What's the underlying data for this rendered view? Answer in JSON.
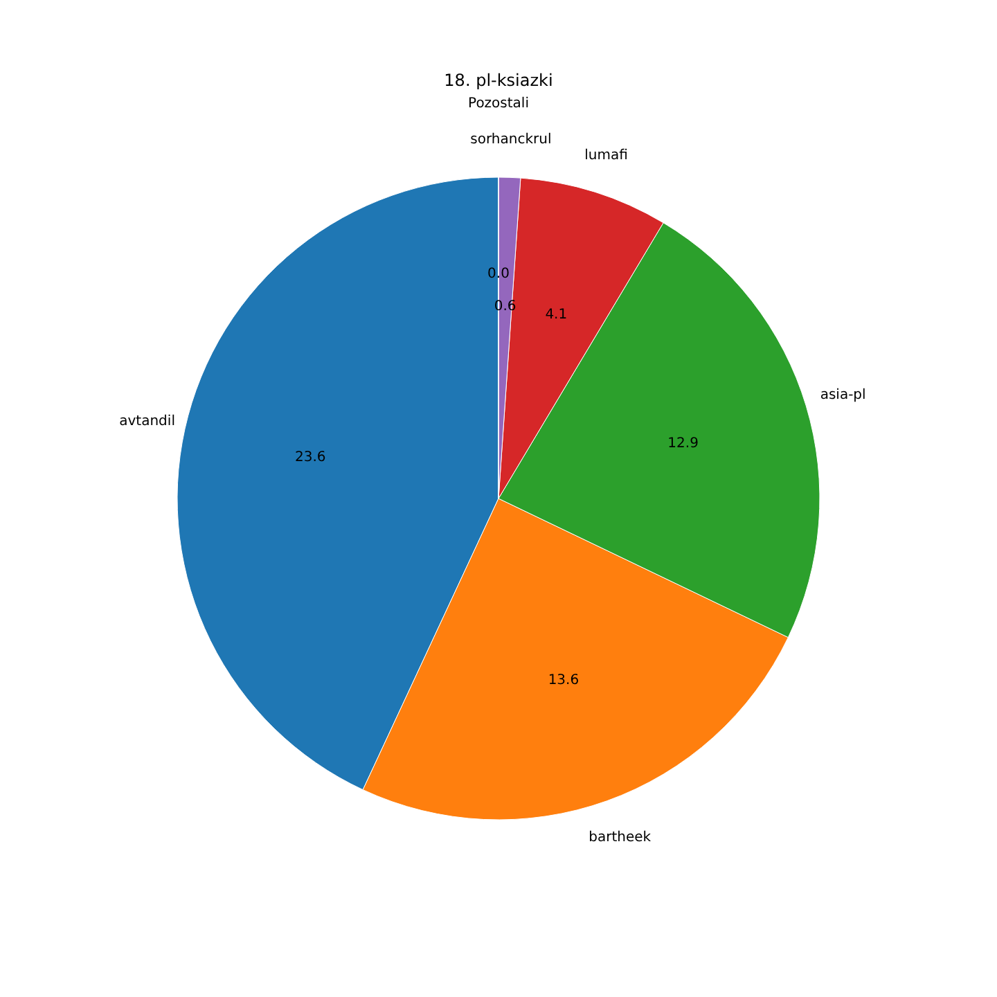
{
  "chart_data": {
    "type": "pie",
    "title": "18. pl-ksiazki",
    "categories": [
      "avtandil",
      "bartheek",
      "asia-pl",
      "lumafi",
      "sorhanckrul",
      "Pozostali"
    ],
    "values": [
      23.6,
      13.6,
      12.9,
      4.1,
      0.6,
      0.0
    ],
    "value_labels": [
      "23.6",
      "13.6",
      "12.9",
      "4.1",
      "0.6",
      "0.0"
    ],
    "colors": [
      "#1f77b4",
      "#ff7f0e",
      "#2ca02c",
      "#d62728",
      "#9467bd",
      "#8c564b"
    ],
    "legend": false
  }
}
